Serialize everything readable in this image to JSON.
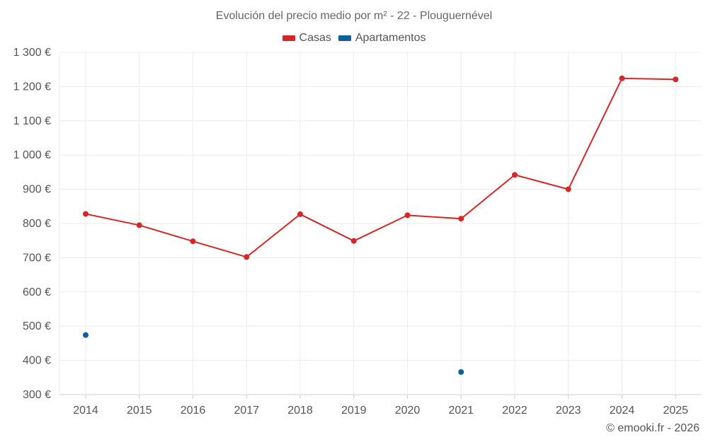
{
  "title": "Evolución del precio medio por m² - 22 - Plouguernével",
  "footer": "© emooki.fr - 2026",
  "legend": [
    {
      "label": "Casas",
      "color": "#d62728"
    },
    {
      "label": "Apartamentos",
      "color": "#0f5f9a"
    }
  ],
  "chart_data": {
    "type": "line",
    "title": "Evolución del precio medio por m² - 22 - Plouguernével",
    "xlabel": "",
    "ylabel": "",
    "categories": [
      "2014",
      "2015",
      "2016",
      "2017",
      "2018",
      "2019",
      "2020",
      "2021",
      "2022",
      "2023",
      "2024",
      "2025"
    ],
    "ylim": [
      300,
      1300
    ],
    "yticks": [
      300,
      400,
      500,
      600,
      700,
      800,
      900,
      1000,
      1100,
      1200,
      1300
    ],
    "ytick_labels": [
      "300 €",
      "400 €",
      "500 €",
      "600 €",
      "700 €",
      "800 €",
      "900 €",
      "1 000 €",
      "1 100 €",
      "1 200 €",
      "1 300 €"
    ],
    "grid": true,
    "legend_position": "top",
    "series": [
      {
        "name": "Casas",
        "color": "#d62728",
        "mode": "line+markers",
        "values": [
          828,
          795,
          748,
          702,
          827,
          749,
          824,
          814,
          942,
          900,
          1224,
          1221
        ]
      },
      {
        "name": "Apartamentos",
        "color": "#0f5f9a",
        "mode": "markers",
        "values": [
          474,
          null,
          null,
          null,
          null,
          null,
          null,
          366,
          null,
          null,
          null,
          null
        ]
      }
    ]
  }
}
